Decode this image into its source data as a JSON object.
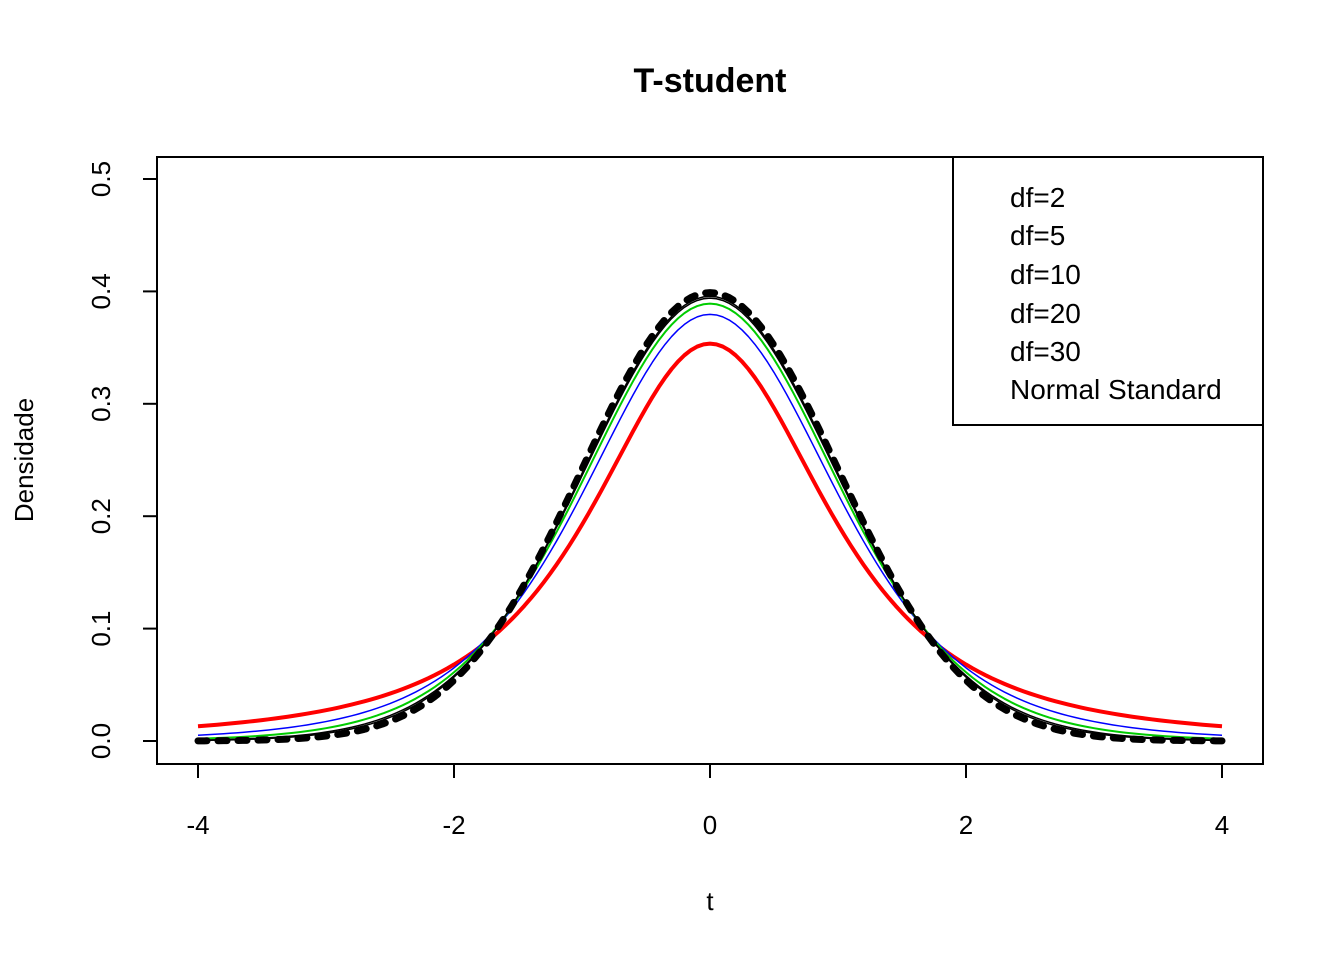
{
  "chart_data": {
    "type": "line",
    "title": "T-student",
    "xlabel": "t",
    "ylabel": "Densidade",
    "xlim": [
      -4,
      4
    ],
    "ylim": [
      0,
      0.5
    ],
    "x_ticks": [
      -4,
      -2,
      0,
      2,
      4
    ],
    "x_tick_labels": [
      "-4",
      "-2",
      "0",
      "2",
      "4"
    ],
    "y_ticks": [
      0.0,
      0.1,
      0.2,
      0.3,
      0.4,
      0.5
    ],
    "y_tick_labels": [
      "0.0",
      "0.1",
      "0.2",
      "0.3",
      "0.4",
      "0.5"
    ],
    "x_sample_range": [
      -4,
      4
    ],
    "x_sample_step": 0.05,
    "legend": {
      "position": "top-right",
      "entries": [
        "df=2",
        "df=5",
        "df=10",
        "df=20",
        "df=30",
        "Normal Standard"
      ]
    },
    "series": [
      {
        "name": "df=2",
        "distribution": "t",
        "df": 2,
        "color": "#ff0000",
        "style": "solid",
        "weight": "thick",
        "peak": 0.354,
        "value_at_4": 0.013
      },
      {
        "name": "df=5",
        "distribution": "t",
        "df": 5,
        "color": "#0000ff",
        "style": "solid",
        "weight": "thin",
        "peak": 0.38,
        "value_at_4": 0.005
      },
      {
        "name": "df=10",
        "distribution": "t",
        "df": 10,
        "color": "#00cc00",
        "style": "solid",
        "weight": "medium",
        "peak": 0.389,
        "value_at_4": 0.002
      },
      {
        "name": "df=20",
        "distribution": "t",
        "df": 20,
        "color": "#000000",
        "style": "solid",
        "weight": "thin",
        "peak": 0.394,
        "value_at_4": 0.001
      },
      {
        "name": "df=30",
        "distribution": "t",
        "df": 30,
        "color": "#000000",
        "style": "solid",
        "weight": "thin",
        "peak": 0.396,
        "value_at_4": 0.001
      },
      {
        "name": "Normal Standard",
        "distribution": "normal",
        "color": "#000000",
        "style": "dotted",
        "weight": "heavy",
        "peak": 0.399,
        "value_at_4": 0.0001
      }
    ]
  }
}
